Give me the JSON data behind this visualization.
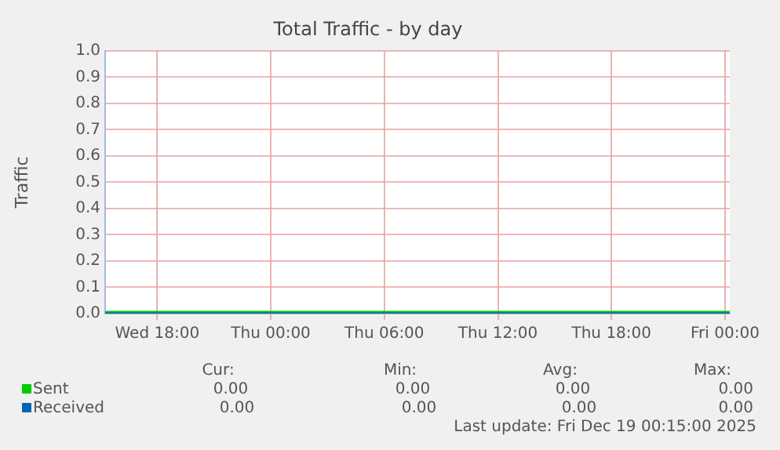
{
  "chart_data": {
    "type": "line",
    "title": "Total Traffic - by day",
    "ylabel": "Traffic",
    "x": [
      "2025-12-17T15:15",
      "2025-12-19T00:15"
    ],
    "series": [
      {
        "name": "Sent",
        "color": "#00cc00",
        "values": [
          0,
          0
        ]
      },
      {
        "name": "Received",
        "color": "#0066b3",
        "values": [
          0,
          0
        ]
      }
    ],
    "xlim": [
      "2025-12-17T15:15",
      "2025-12-19T00:15"
    ],
    "xticks": [
      {
        "value": "2025-12-17T18:00",
        "label": "Wed 18:00"
      },
      {
        "value": "2025-12-18T00:00",
        "label": "Thu 00:00"
      },
      {
        "value": "2025-12-18T06:00",
        "label": "Thu 06:00"
      },
      {
        "value": "2025-12-18T12:00",
        "label": "Thu 12:00"
      },
      {
        "value": "2025-12-18T18:00",
        "label": "Thu 18:00"
      },
      {
        "value": "2025-12-19T00:00",
        "label": "Fri 00:00"
      }
    ],
    "ylim": [
      0,
      1
    ],
    "yticks": [
      {
        "value": 0,
        "label": "0.0"
      },
      {
        "value": 0.1,
        "label": "0.1"
      },
      {
        "value": 0.2,
        "label": "0.2"
      },
      {
        "value": 0.3,
        "label": "0.3"
      },
      {
        "value": 0.4,
        "label": "0.4"
      },
      {
        "value": 0.5,
        "label": "0.5"
      },
      {
        "value": 0.6,
        "label": "0.6"
      },
      {
        "value": 0.7,
        "label": "0.7"
      },
      {
        "value": 0.8,
        "label": "0.8"
      },
      {
        "value": 0.9,
        "label": "0.9"
      },
      {
        "value": 1,
        "label": "1.0"
      }
    ],
    "grid": true,
    "legend": "bottom left",
    "marker": "none",
    "line_style": "solid",
    "annotations": [
      "Cur:",
      "Min:",
      "Avg:",
      "Max:",
      "0.00",
      "0.00",
      "0.00",
      "0.00",
      "0.00",
      "0.00",
      "0.00",
      "0.00",
      "Last update: Fri Dec 19 00:15:00 2025"
    ]
  }
}
